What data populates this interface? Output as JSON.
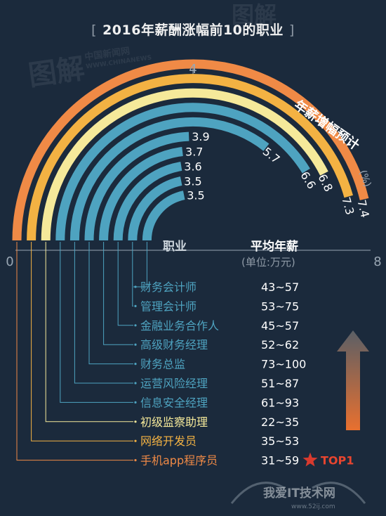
{
  "title": "2016年薪酬涨幅前10的职业",
  "watermark_top": "图解",
  "watermark_mid": "中国新闻网",
  "watermark_mid_sub": "WWW.CHINANEWS",
  "chart_data": {
    "type": "bar",
    "layout": "radial-semicircle",
    "axis_min": 0,
    "axis_max": 8,
    "axis_mid": 4,
    "tick_labels": [
      "0",
      "4",
      "8"
    ],
    "arc_axis_label": "年薪增幅预计",
    "arc_axis_unit": "(%)",
    "column_job_header": "职业",
    "column_salary_header": "平均年薪",
    "column_salary_unit": "(单位:万元)",
    "rank_label": "TOP1",
    "categories": [
      "财务会计师",
      "管理会计师",
      "金融业务合作人",
      "高级财务经理",
      "财务总监",
      "运营风险经理",
      "信息安全经理",
      "初级监察助理",
      "网络开发员",
      "手机app程序员"
    ],
    "values_display": [
      "3.5",
      "3.5",
      "3.6",
      "3.7",
      "3.9",
      "5.7",
      "6.6",
      "6.8",
      "7.3",
      "7.4"
    ],
    "values": [
      3.5,
      3.5,
      3.6,
      3.7,
      3.9,
      5.7,
      6.6,
      6.8,
      7.3,
      7.4
    ],
    "salaries": [
      "43~57",
      "53~75",
      "45~57",
      "52~62",
      "73~100",
      "51~87",
      "61~93",
      "22~35",
      "35~53",
      "31~59"
    ],
    "colors": [
      "#4ea3c0",
      "#4ea3c0",
      "#4ea3c0",
      "#4ea3c0",
      "#4ea3c0",
      "#4ea3c0",
      "#4ea3c0",
      "#f5e99a",
      "#f3b243",
      "#f08a46"
    ]
  },
  "footer_logo": "我爱IT技术网",
  "footer_url": "www.52ij.com"
}
